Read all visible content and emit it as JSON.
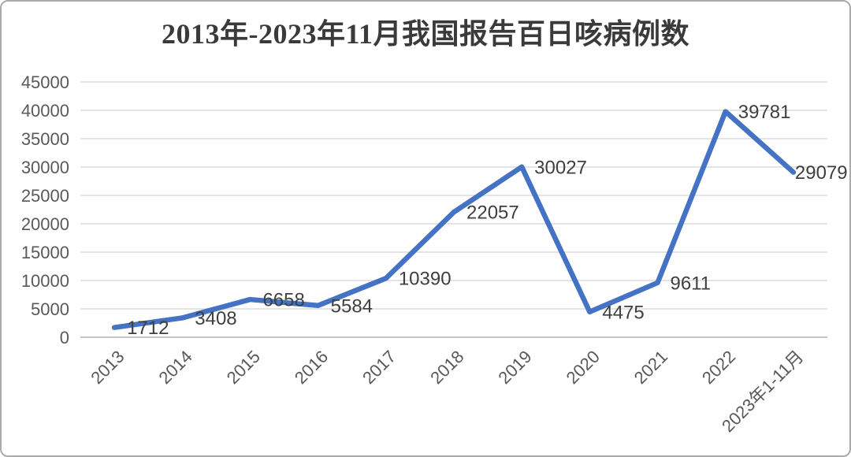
{
  "chart_data": {
    "type": "line",
    "title": "2013年-2023年11月我国报告百日咳病例数",
    "categories": [
      "2013",
      "2014",
      "2015",
      "2016",
      "2017",
      "2018",
      "2019",
      "2020",
      "2021",
      "2022",
      "2023年1-11月"
    ],
    "values": [
      1712,
      3408,
      6658,
      5584,
      10390,
      22057,
      30027,
      4475,
      9611,
      39781,
      29079
    ],
    "data_labels_shown": true,
    "xlabel": "",
    "ylabel": "",
    "ylim": [
      0,
      45000
    ],
    "ytick_interval": 5000,
    "yticks": [
      0,
      5000,
      10000,
      15000,
      20000,
      25000,
      30000,
      35000,
      40000,
      45000
    ],
    "grid": true,
    "legend": "none",
    "line_color": "#4472C4",
    "gridline_color": "#e4e4e4",
    "axis_line_color": "#c6c6c6",
    "tick_label_color": "#595959",
    "data_label_color": "#3f3f3f",
    "title_color": "#3a3a3a"
  }
}
